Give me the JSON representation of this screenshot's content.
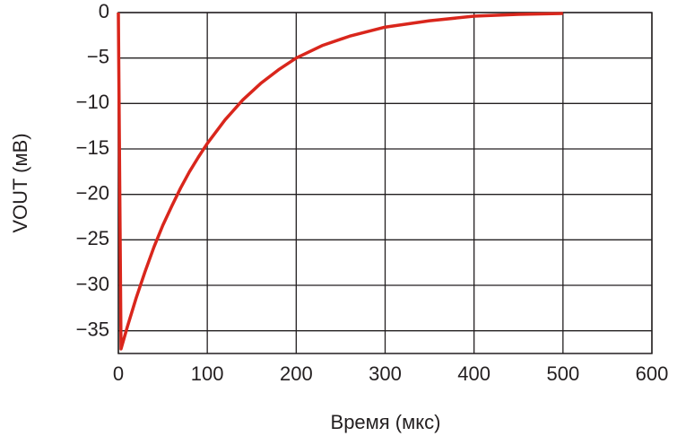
{
  "chart_data": {
    "type": "line",
    "x_label": "Время (мкс)",
    "y_label": "VOUT (мВ)",
    "x": [
      0,
      3,
      10,
      20,
      30,
      40,
      50,
      60,
      70,
      80,
      90,
      100,
      120,
      140,
      160,
      180,
      200,
      230,
      260,
      300,
      350,
      400,
      450,
      500
    ],
    "values": [
      0,
      -37,
      -34.6,
      -31.4,
      -28.5,
      -25.8,
      -23.4,
      -21.3,
      -19.3,
      -17.5,
      -15.9,
      -14.4,
      -11.8,
      -9.6,
      -7.8,
      -6.3,
      -5.0,
      -3.6,
      -2.6,
      -1.6,
      -0.9,
      -0.4,
      -0.2,
      -0.1
    ],
    "color": "#d9261c",
    "xlim": [
      0,
      600
    ],
    "xticks": [
      0,
      100,
      200,
      300,
      400,
      500,
      600
    ],
    "ylim": [
      -37.5,
      0
    ],
    "yticks": [
      0,
      {
        "value": -5,
        "label": "−5"
      },
      {
        "value": -10,
        "label": "−10"
      },
      {
        "value": -15,
        "label": "−15"
      },
      {
        "value": -20,
        "label": "−20"
      },
      {
        "value": -25,
        "label": "−25"
      },
      {
        "value": -30,
        "label": "−30"
      },
      {
        "value": -35,
        "label": "−35"
      }
    ],
    "grid": true
  }
}
